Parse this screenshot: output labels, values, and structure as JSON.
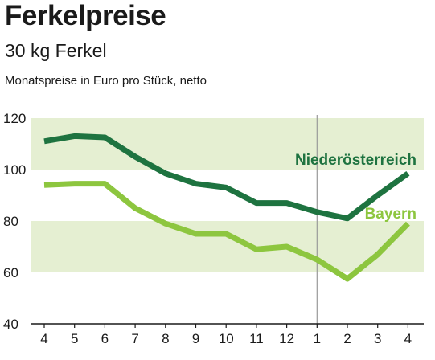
{
  "header": {
    "title": "Ferkelpreise",
    "subtitle": "30 kg Ferkel",
    "note": "Monatspreise in Euro pro Stück, netto"
  },
  "chart_data": {
    "type": "line",
    "title": "Ferkelpreise",
    "subtitle": "30 kg Ferkel",
    "ylabel": "Monatspreise in Euro pro Stück, netto",
    "categories": [
      "4",
      "5",
      "6",
      "7",
      "8",
      "9",
      "10",
      "11",
      "12",
      "1",
      "2",
      "3",
      "4"
    ],
    "ylim": [
      40,
      120
    ],
    "yticks": [
      "40",
      "60",
      "80",
      "100",
      "120"
    ],
    "grid": "alternating horizontal bands",
    "year_separator_before_category_index": 9,
    "series": [
      {
        "name": "Niederösterreich",
        "color": "#1e7340",
        "values": [
          111,
          113,
          112.5,
          105,
          98.5,
          94.5,
          93,
          87,
          87,
          83.5,
          81,
          90,
          98.5
        ]
      },
      {
        "name": "Bayern",
        "color": "#8dc63f",
        "values": [
          94,
          94.5,
          94.5,
          85,
          79,
          75,
          75,
          69,
          70,
          65,
          57.5,
          67,
          79
        ]
      }
    ],
    "colors": {
      "band": "#e5efd2",
      "axis": "#1a1a1a",
      "separator": "#999999"
    }
  }
}
